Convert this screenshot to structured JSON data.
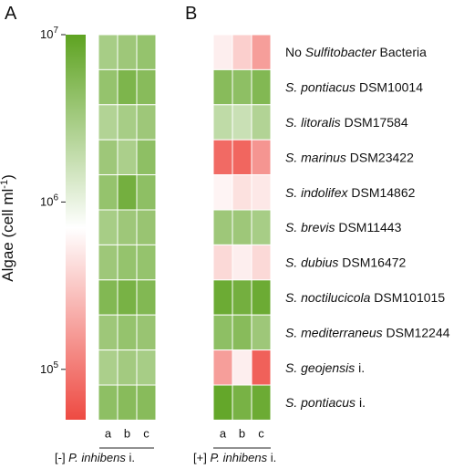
{
  "panels": {
    "a": {
      "letter": "A"
    },
    "b": {
      "letter": "B"
    }
  },
  "colorbar": {
    "label": "Algae (cell ml",
    "label_sup": "-1",
    "label_end": ")",
    "scale": "log",
    "range": [
      50000,
      10000000
    ],
    "ticks": [
      {
        "value": 10000000,
        "base": "10",
        "exp": "7"
      },
      {
        "value": 1000000,
        "base": "10",
        "exp": "6"
      },
      {
        "value": 100000,
        "base": "10",
        "exp": "5"
      }
    ],
    "colors": {
      "high": "#5ea321",
      "mid": "#ffffff",
      "low": "#ee4a42"
    },
    "mid_value": 700000
  },
  "conditions": {
    "minus": {
      "prefix": "[-] ",
      "species": "P. inhibens",
      "suffix": " i."
    },
    "plus": {
      "prefix": "[+] ",
      "species": "P. inhibens",
      "suffix": " i."
    }
  },
  "columns": [
    "a",
    "b",
    "c"
  ],
  "rows": [
    {
      "italic": "",
      "pre": "No ",
      "mid": "Sulfitobacter",
      "rest": " Bacteria"
    },
    {
      "italic": "S. pontiacus",
      "pre": "",
      "mid": "",
      "rest": " DSM10014"
    },
    {
      "italic": "S. litoralis",
      "pre": "",
      "mid": "",
      "rest": " DSM17584"
    },
    {
      "italic": "S. marinus",
      "pre": "",
      "mid": "",
      "rest": " DSM23422"
    },
    {
      "italic": "S. indolifex",
      "pre": "",
      "mid": "",
      "rest": " DSM14862"
    },
    {
      "italic": "S. brevis",
      "pre": "",
      "mid": "",
      "rest": " DSM11443"
    },
    {
      "italic": "S. dubius",
      "pre": "",
      "mid": "",
      "rest": " DSM16472"
    },
    {
      "italic": "S. noctilucicola",
      "pre": "",
      "mid": "",
      "rest": " DSM101015"
    },
    {
      "italic": "S. mediterraneus",
      "pre": "",
      "mid": "",
      "rest": " DSM12244"
    },
    {
      "italic": "S. geojensis",
      "pre": "",
      "mid": "",
      "rest": " i."
    },
    {
      "italic": "S. pontiacus",
      "pre": "",
      "mid": "",
      "rest": " i."
    }
  ],
  "chart_data": {
    "type": "heatmap",
    "scale": "log",
    "units": "cell ml-1",
    "columns": [
      "a",
      "b",
      "c"
    ],
    "panel_a": {
      "condition": "[-] P. inhibens i.",
      "values": [
        [
          3000000,
          3500000,
          4000000
        ],
        [
          4000000,
          6000000,
          5000000
        ],
        [
          2500000,
          3000000,
          3500000
        ],
        [
          3500000,
          2800000,
          4500000
        ],
        [
          4000000,
          7000000,
          4500000
        ],
        [
          3000000,
          3500000,
          3800000
        ],
        [
          3500000,
          4000000,
          4000000
        ],
        [
          5500000,
          6500000,
          5500000
        ],
        [
          3500000,
          4000000,
          3800000
        ],
        [
          2800000,
          3200000,
          3000000
        ],
        [
          4500000,
          5000000,
          5000000
        ]
      ]
    },
    "panel_b": {
      "condition": "[+] P. inhibens i.",
      "values": [
        [
          550000,
          350000,
          170000
        ],
        [
          5000000,
          4500000,
          5500000
        ],
        [
          2000000,
          1700000,
          2500000
        ],
        [
          80000,
          75000,
          150000
        ],
        [
          600000,
          450000,
          500000
        ],
        [
          3500000,
          3500000,
          3000000
        ],
        [
          400000,
          550000,
          400000
        ],
        [
          8000000,
          7000000,
          8000000
        ],
        [
          4500000,
          5000000,
          3500000
        ],
        [
          170000,
          550000,
          70000
        ],
        [
          9000000,
          6500000,
          8000000
        ]
      ]
    }
  }
}
